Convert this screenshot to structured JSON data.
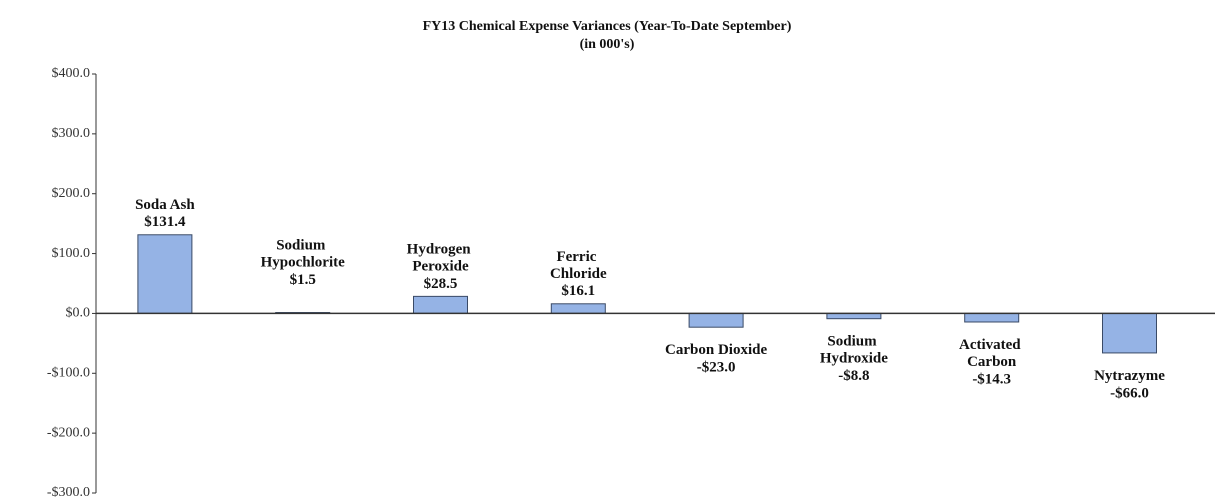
{
  "chart_data": {
    "type": "bar",
    "title": "FY13 Chemical Expense Variances (Year-To-Date September)",
    "subtitle": "(in 000's)",
    "categories": [
      "Soda Ash",
      "Sodium Hypochlorite",
      "Hydrogen Peroxide",
      "Ferric Chloride",
      "Carbon Dioxide",
      "Sodium Hydroxide",
      "Activated Carbon",
      "Nytrazyme"
    ],
    "values": [
      131.4,
      1.5,
      28.5,
      16.1,
      -23.0,
      -8.8,
      -14.3,
      -66.0
    ],
    "value_labels": [
      "$131.4",
      "$1.5",
      "$28.5",
      "$16.1",
      "-$23.0",
      "-$8.8",
      "-$14.3",
      "-$66.0"
    ],
    "color": "#95b3e5",
    "ylim": [
      -300,
      400
    ],
    "yticks": [
      {
        "value": -300,
        "label": "-$300.0"
      },
      {
        "value": -200,
        "label": "-$200.0"
      },
      {
        "value": -100,
        "label": "-$100.0"
      },
      {
        "value": 0,
        "label": "$0.0"
      },
      {
        "value": 100,
        "label": "$100.0"
      },
      {
        "value": 200,
        "label": "$200.0"
      },
      {
        "value": 300,
        "label": "$300.0"
      },
      {
        "value": 400,
        "label": "$400.0"
      }
    ],
    "grid": false
  }
}
